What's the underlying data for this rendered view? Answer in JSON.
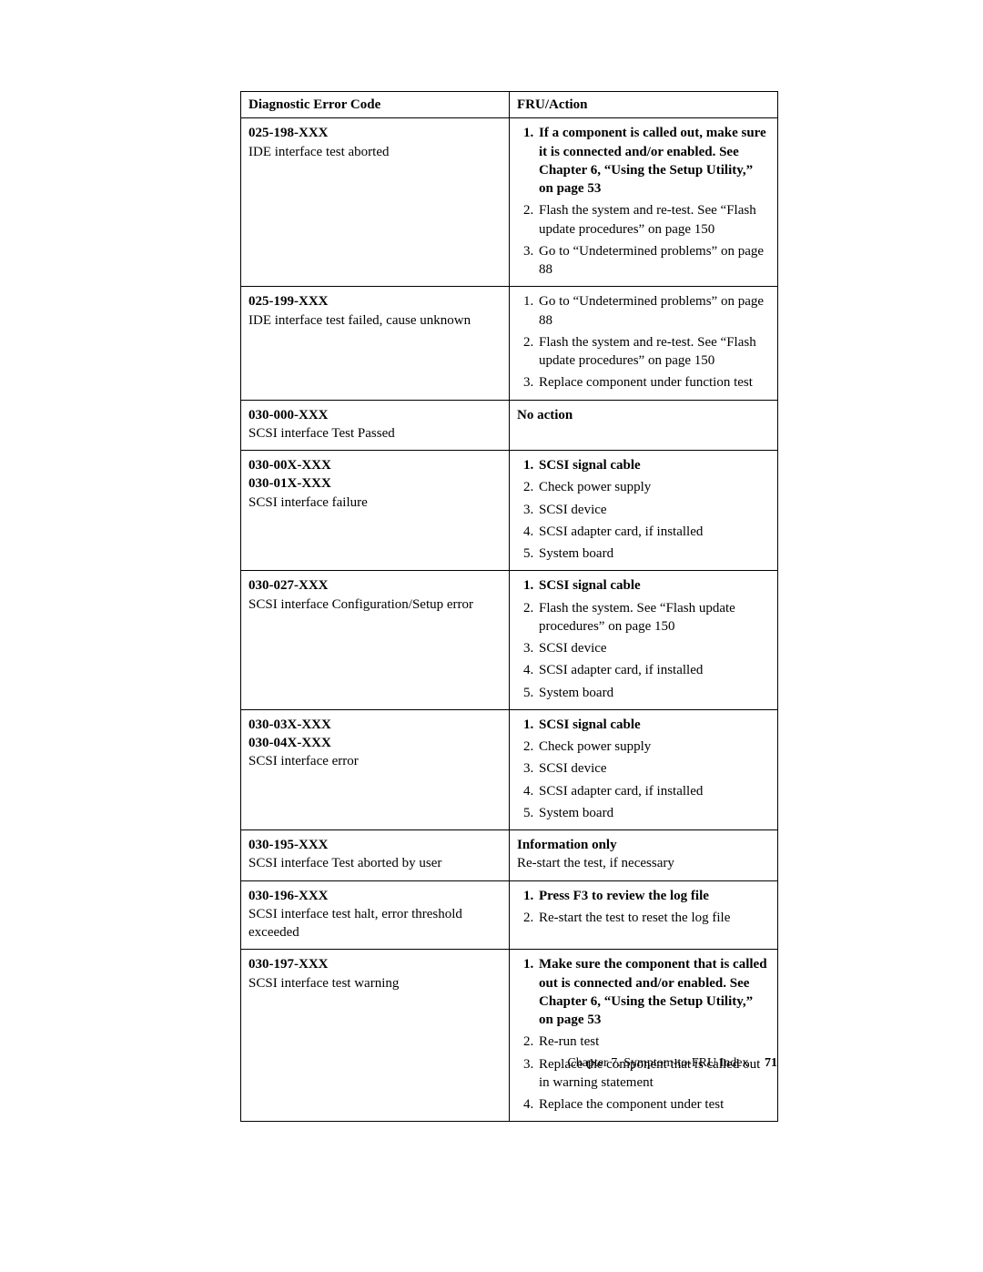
{
  "table": {
    "headers": {
      "col1": "Diagnostic Error Code",
      "col2": "FRU/Action"
    },
    "rows": [
      {
        "codes": [
          "025-198-XXX"
        ],
        "desc": "IDE interface test aborted",
        "action_plain": null,
        "actions": [
          {
            "bold": true,
            "text": "If a component is called out, make sure it is connected and/or enabled. See Chapter 6, “Using the Setup Utility,” on page 53"
          },
          {
            "bold": false,
            "text": "Flash the system and re-test. See “Flash update procedures” on page 150"
          },
          {
            "bold": false,
            "text": "Go to “Undetermined problems” on page 88"
          }
        ]
      },
      {
        "codes": [
          "025-199-XXX"
        ],
        "desc": "IDE interface test failed, cause unknown",
        "action_plain": null,
        "actions": [
          {
            "bold": false,
            "text": "Go to “Undetermined problems” on page 88"
          },
          {
            "bold": false,
            "text": "Flash the system and re-test. See “Flash update procedures” on page 150"
          },
          {
            "bold": false,
            "text": "Replace component under function test"
          }
        ]
      },
      {
        "codes": [
          "030-000-XXX"
        ],
        "desc": "SCSI interface Test Passed",
        "action_plain": {
          "bold_lead": "No action",
          "rest": ""
        },
        "actions": []
      },
      {
        "codes": [
          "030-00X-XXX",
          "030-01X-XXX"
        ],
        "desc": "SCSI interface failure",
        "action_plain": null,
        "actions": [
          {
            "bold": true,
            "text": "SCSI signal cable"
          },
          {
            "bold": false,
            "text": "Check power supply"
          },
          {
            "bold": false,
            "text": "SCSI device"
          },
          {
            "bold": false,
            "text": "SCSI adapter card, if installed"
          },
          {
            "bold": false,
            "text": "System board"
          }
        ]
      },
      {
        "codes": [
          "030-027-XXX"
        ],
        "desc": "SCSI interface Configuration/Setup error",
        "action_plain": null,
        "actions": [
          {
            "bold": true,
            "text": "SCSI signal cable"
          },
          {
            "bold": false,
            "text": "Flash the system. See “Flash update procedures” on page 150"
          },
          {
            "bold": false,
            "text": "SCSI device"
          },
          {
            "bold": false,
            "text": "SCSI adapter card, if installed"
          },
          {
            "bold": false,
            "text": "System board"
          }
        ]
      },
      {
        "codes": [
          "030-03X-XXX",
          "030-04X-XXX"
        ],
        "desc": "SCSI interface error",
        "action_plain": null,
        "actions": [
          {
            "bold": true,
            "text": "SCSI signal cable"
          },
          {
            "bold": false,
            "text": "Check power supply"
          },
          {
            "bold": false,
            "text": "SCSI device"
          },
          {
            "bold": false,
            "text": "SCSI adapter card, if installed"
          },
          {
            "bold": false,
            "text": "System board"
          }
        ]
      },
      {
        "codes": [
          "030-195-XXX"
        ],
        "desc": "SCSI interface Test aborted by user",
        "action_plain": {
          "bold_lead": "Information only",
          "rest": "Re-start the test, if necessary"
        },
        "actions": []
      },
      {
        "codes": [
          "030-196-XXX"
        ],
        "desc": "SCSI interface test halt, error threshold exceeded",
        "action_plain": null,
        "actions": [
          {
            "bold": true,
            "text": "Press F3 to review the log file"
          },
          {
            "bold": false,
            "text": "Re-start the test to reset the log file"
          }
        ]
      },
      {
        "codes": [
          "030-197-XXX"
        ],
        "desc": "SCSI interface test warning",
        "action_plain": null,
        "actions": [
          {
            "bold": true,
            "text": "Make sure the component that is called out is connected and/or enabled. See Chapter 6, “Using the Setup Utility,” on page 53"
          },
          {
            "bold": false,
            "text": "Re-run test"
          },
          {
            "bold": false,
            "text": "Replace the component that is called out in warning statement"
          },
          {
            "bold": false,
            "text": "Replace the component under test"
          }
        ]
      }
    ]
  },
  "footer": {
    "chapter": "Chapter 7. Symptom-to-FRU Index",
    "page": "71"
  }
}
